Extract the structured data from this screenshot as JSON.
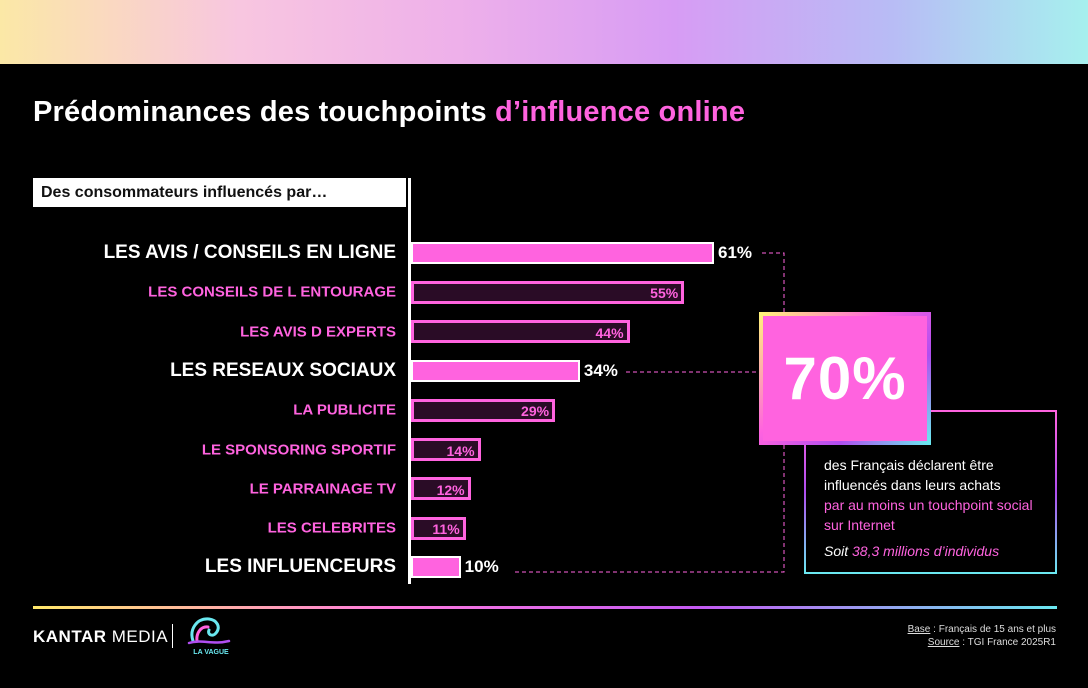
{
  "title": {
    "part1": "Prédominances des touchpoints ",
    "part2": "d’influence online"
  },
  "chart_data": {
    "type": "bar",
    "orientation": "horizontal",
    "header": "Des consommateurs influencés par…",
    "categories": [
      "LES AVIS / CONSEILS EN LIGNE",
      "LES CONSEILS DE L ENTOURAGE",
      "LES AVIS D EXPERTS",
      "LES RESEAUX SOCIAUX",
      "LA PUBLICITE",
      "LE SPONSORING SPORTIF",
      "LE PARRAINAGE TV",
      "LES CELEBRITES",
      "LES INFLUENCEURS"
    ],
    "values": [
      61,
      55,
      44,
      34,
      29,
      14,
      12,
      11,
      10
    ],
    "value_labels": [
      "61%",
      "55%",
      "44%",
      "34%",
      "29%",
      "14%",
      "12%",
      "11%",
      "10%"
    ],
    "highlighted": [
      true,
      false,
      false,
      true,
      false,
      false,
      false,
      false,
      true
    ],
    "unit": "%",
    "colors": {
      "accent": "#ff63df",
      "highlight_fill": "#ff63df",
      "minor_fill": "#2a0c26"
    }
  },
  "summary": {
    "big_stat": "70%",
    "text1": "des Français déclarent être influencés dans leurs achats",
    "text2": "par au moins un touchpoint social sur Internet",
    "text3_prefix": "Soit ",
    "text3_highlight": "38,3 millions d’individus"
  },
  "footer": {
    "brand_bold": "KANTAR",
    "brand_light": " MEDIA",
    "logo_text": "LA VAGUE",
    "base_label": "Base",
    "base_text": " : Français de 15 ans et plus",
    "source_label": "Source",
    "source_text": " : TGI France 2025R1"
  }
}
